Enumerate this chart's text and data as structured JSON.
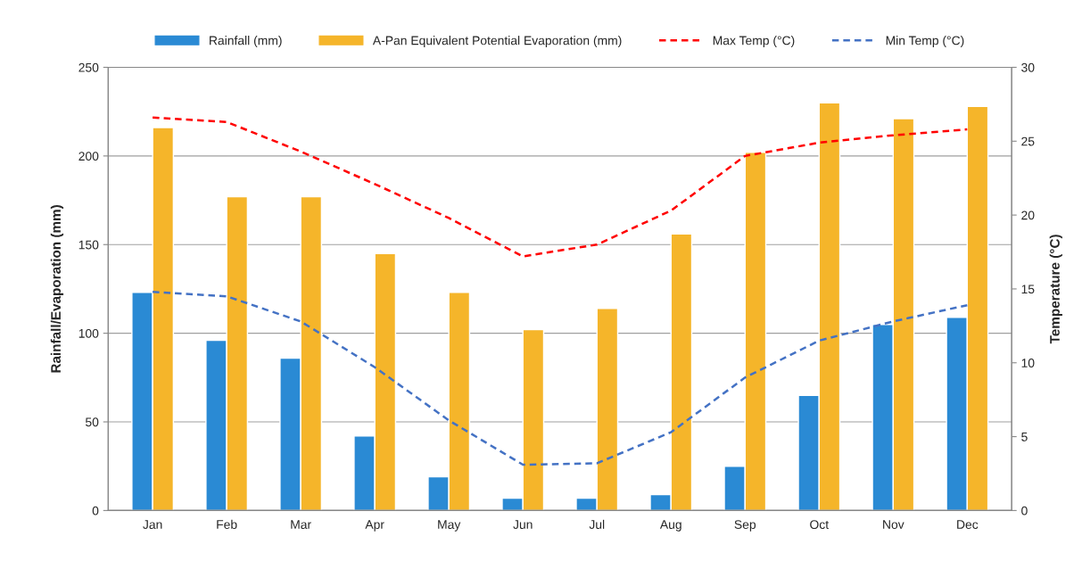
{
  "chart_data": {
    "type": "bar",
    "ylabel": "Rainfall/Evaporation (mm)",
    "y2label": "Temperature (°C)",
    "categories": [
      "Jan",
      "Feb",
      "Mar",
      "Apr",
      "May",
      "Jun",
      "Jul",
      "Aug",
      "Sep",
      "Oct",
      "Nov",
      "Dec"
    ],
    "series": [
      {
        "name": "Rainfall (mm)",
        "color": "#2a8ad4",
        "values": [
          123,
          96,
          86,
          42,
          19,
          7,
          7,
          9,
          25,
          65,
          105,
          109
        ]
      },
      {
        "name": "A-Pan Equivalent Potential Evaporation (mm)",
        "color": "#f5b52a",
        "values": [
          216,
          177,
          177,
          145,
          123,
          102,
          114,
          156,
          202,
          230,
          221,
          228
        ]
      },
      {
        "name": "Max Temp (°C)",
        "type": "line",
        "axis": "y2",
        "color": "#ff0000",
        "line_style": "dashed",
        "values": [
          26.6,
          26.3,
          24.3,
          22.1,
          19.8,
          17.2,
          18.0,
          20.3,
          24.0,
          24.9,
          25.4,
          25.8
        ]
      },
      {
        "name": "Min Temp (°C)",
        "type": "line",
        "axis": "y2",
        "color": "#4472c4",
        "line_style": "dashed",
        "values": [
          14.8,
          14.5,
          12.8,
          9.7,
          6.1,
          3.1,
          3.2,
          5.3,
          9.0,
          11.5,
          12.8,
          13.9
        ]
      }
    ],
    "ylim": [
      0,
      250
    ],
    "yticks": [
      0,
      50,
      100,
      150,
      200,
      250
    ],
    "y2lim": [
      0,
      30
    ],
    "y2ticks": [
      0,
      5,
      10,
      15,
      20,
      25,
      30
    ],
    "grid": "y",
    "legend": "top"
  }
}
